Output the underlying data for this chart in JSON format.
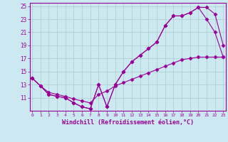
{
  "xlabel": "Windchill (Refroidissement éolien,°C)",
  "bg_color": "#cce8f0",
  "line_color": "#990099",
  "grid_color": "#aacccc",
  "xmin": 0,
  "xmax": 23,
  "ymin": 9,
  "ymax": 25,
  "line1_x": [
    0,
    1,
    2,
    3,
    4,
    5,
    6,
    7,
    8,
    9,
    10,
    11,
    12,
    13,
    14,
    15,
    16,
    17,
    18,
    19,
    20,
    21,
    22,
    23
  ],
  "line1_y": [
    14.0,
    12.8,
    11.5,
    11.2,
    11.0,
    10.2,
    9.6,
    9.3,
    13.0,
    9.6,
    13.0,
    15.0,
    16.5,
    17.5,
    18.5,
    19.5,
    22.0,
    23.5,
    23.5,
    24.0,
    24.8,
    24.8,
    23.8,
    19.0
  ],
  "line2_x": [
    0,
    1,
    2,
    3,
    4,
    5,
    6,
    7,
    8,
    9,
    10,
    11,
    12,
    13,
    14,
    15,
    16,
    17,
    18,
    19,
    20,
    21,
    22,
    23
  ],
  "line2_y": [
    14.0,
    12.8,
    11.5,
    11.2,
    11.0,
    10.2,
    9.6,
    9.3,
    13.0,
    9.6,
    13.0,
    15.0,
    16.5,
    17.5,
    18.5,
    19.5,
    22.0,
    23.5,
    23.5,
    24.0,
    24.8,
    23.0,
    21.0,
    17.2
  ],
  "line3_x": [
    0,
    1,
    2,
    3,
    4,
    5,
    6,
    7,
    8,
    9,
    10,
    11,
    12,
    13,
    14,
    15,
    16,
    17,
    18,
    19,
    20,
    21,
    22,
    23
  ],
  "line3_y": [
    14.0,
    12.8,
    11.8,
    11.5,
    11.2,
    10.8,
    10.5,
    10.2,
    11.5,
    12.0,
    12.8,
    13.3,
    13.8,
    14.3,
    14.8,
    15.3,
    15.8,
    16.3,
    16.8,
    17.0,
    17.2,
    17.2,
    17.2,
    17.2
  ],
  "marker": "D",
  "markersize": 2.5,
  "linewidth": 0.8,
  "xtick_fontsize": 4.5,
  "ytick_fontsize": 5.5,
  "xlabel_fontsize": 6.0
}
